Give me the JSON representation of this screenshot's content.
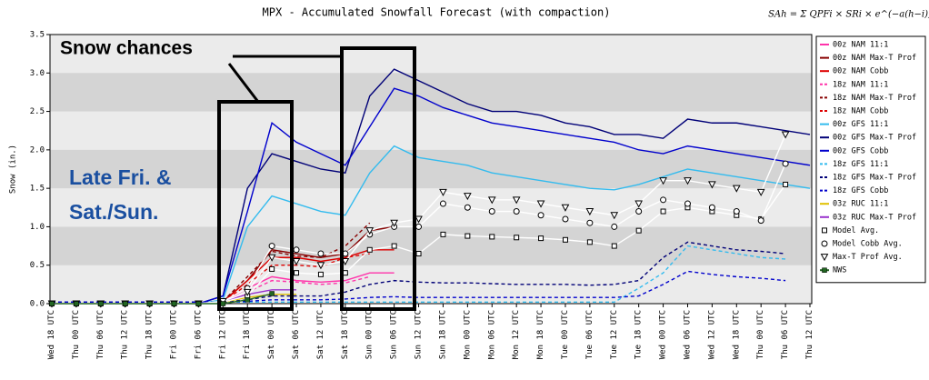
{
  "chart_data": {
    "type": "line",
    "title": "MPX - Accumulated Snowfall Forecast (with compaction)",
    "formula": "SAh = Σ QPFi × SRi × e^(−a(h−i))",
    "y_label": "Snow (in.)",
    "annotations": [
      "Snow chances",
      "Late Fri. &",
      "Sat./Sun."
    ],
    "categories": [
      "Wed 18 UTC",
      "Thu 00 UTC",
      "Thu 06 UTC",
      "Thu 12 UTC",
      "Thu 18 UTC",
      "Fri 00 UTC",
      "Fri 06 UTC",
      "Fri 12 UTC",
      "Fri 18 UTC",
      "Sat 00 UTC",
      "Sat 06 UTC",
      "Sat 12 UTC",
      "Sat 18 UTC",
      "Sun 00 UTC",
      "Sun 06 UTC",
      "Sun 12 UTC",
      "Sun 18 UTC",
      "Mon 00 UTC",
      "Mon 06 UTC",
      "Mon 12 UTC",
      "Mon 18 UTC",
      "Tue 00 UTC",
      "Tue 06 UTC",
      "Tue 12 UTC",
      "Tue 18 UTC",
      "Wed 00 UTC",
      "Wed 06 UTC",
      "Wed 12 UTC",
      "Wed 18 UTC",
      "Thu 00 UTC",
      "Thu 06 UTC",
      "Thu 12 UTC"
    ],
    "ylim": [
      0,
      3.5
    ],
    "yticks": [
      {
        "value": 0,
        "label": "0.0"
      },
      {
        "value": 0.5,
        "label": "0.5"
      },
      {
        "value": 1,
        "label": "1.0"
      },
      {
        "value": 1.5,
        "label": "1.5"
      },
      {
        "value": 2,
        "label": "2.0"
      },
      {
        "value": 2.5,
        "label": "2.5"
      },
      {
        "value": 3,
        "label": "3.0"
      },
      {
        "value": 3.5,
        "label": "3.5"
      }
    ],
    "grid": "bands",
    "legend": "right",
    "series": [
      {
        "name": "00z NAM 11:1",
        "color": "#ff33aa",
        "dashed": false,
        "values": [
          0,
          0,
          0,
          0,
          0,
          0,
          0,
          0.02,
          0.2,
          0.35,
          0.3,
          0.28,
          0.3,
          0.4,
          0.4,
          null,
          null,
          null,
          null,
          null,
          null,
          null,
          null,
          null,
          null,
          null,
          null,
          null,
          null,
          null,
          null,
          null
        ]
      },
      {
        "name": "00z NAM Max-T Prof",
        "color": "#880000",
        "dashed": false,
        "values": [
          0,
          0,
          0,
          0,
          0,
          0,
          0,
          0.03,
          0.3,
          0.7,
          0.65,
          0.6,
          0.65,
          0.95,
          1.0,
          null,
          null,
          null,
          null,
          null,
          null,
          null,
          null,
          null,
          null,
          null,
          null,
          null,
          null,
          null,
          null,
          null
        ]
      },
      {
        "name": "00z NAM Cobb",
        "color": "#dd0000",
        "dashed": false,
        "values": [
          0,
          0,
          0,
          0,
          0,
          0,
          0,
          0.02,
          0.3,
          0.6,
          0.6,
          0.55,
          0.6,
          0.7,
          0.7,
          null,
          null,
          null,
          null,
          null,
          null,
          null,
          null,
          null,
          null,
          null,
          null,
          null,
          null,
          null,
          null,
          null
        ]
      },
      {
        "name": "18z NAM 11:1",
        "color": "#ff33aa",
        "dashed": true,
        "values": [
          0,
          0,
          0,
          0,
          0,
          0,
          0,
          0.02,
          0.15,
          0.3,
          0.28,
          0.25,
          0.27,
          0.35,
          null,
          null,
          null,
          null,
          null,
          null,
          null,
          null,
          null,
          null,
          null,
          null,
          null,
          null,
          null,
          null,
          null,
          null
        ]
      },
      {
        "name": "18z NAM Max-T Prof",
        "color": "#880000",
        "dashed": true,
        "values": [
          0,
          0,
          0,
          0,
          0,
          0,
          0,
          0.03,
          0.35,
          0.68,
          0.62,
          0.6,
          0.75,
          1.05,
          null,
          null,
          null,
          null,
          null,
          null,
          null,
          null,
          null,
          null,
          null,
          null,
          null,
          null,
          null,
          null,
          null,
          null
        ]
      },
      {
        "name": "18z NAM Cobb",
        "color": "#dd0000",
        "dashed": true,
        "values": [
          0,
          0,
          0,
          0,
          0,
          0,
          0,
          0.02,
          0.25,
          0.5,
          0.5,
          0.48,
          0.6,
          0.65,
          null,
          null,
          null,
          null,
          null,
          null,
          null,
          null,
          null,
          null,
          null,
          null,
          null,
          null,
          null,
          null,
          null,
          null
        ]
      },
      {
        "name": "00z GFS 11:1",
        "color": "#33bbee",
        "dashed": false,
        "values": [
          0,
          0,
          0,
          0,
          0,
          0,
          0,
          0.05,
          1.0,
          1.4,
          1.3,
          1.2,
          1.15,
          1.7,
          2.05,
          1.9,
          1.85,
          1.8,
          1.7,
          1.65,
          1.6,
          1.55,
          1.5,
          1.48,
          1.55,
          1.65,
          1.75,
          1.7,
          1.65,
          1.6,
          1.55,
          1.5
        ]
      },
      {
        "name": "00z GFS Max-T Prof",
        "color": "#000077",
        "dashed": false,
        "values": [
          0,
          0,
          0,
          0,
          0,
          0,
          0,
          0.1,
          1.5,
          1.95,
          1.85,
          1.75,
          1.7,
          2.7,
          3.05,
          2.9,
          2.75,
          2.6,
          2.5,
          2.5,
          2.45,
          2.35,
          2.3,
          2.2,
          2.2,
          2.15,
          2.4,
          2.35,
          2.35,
          2.3,
          2.25,
          2.2
        ]
      },
      {
        "name": "00z GFS Cobb",
        "color": "#0000cc",
        "dashed": false,
        "values": [
          0,
          0,
          0,
          0,
          0,
          0,
          0,
          0.1,
          1.2,
          2.35,
          2.1,
          1.95,
          1.8,
          2.3,
          2.8,
          2.7,
          2.55,
          2.45,
          2.35,
          2.3,
          2.25,
          2.2,
          2.15,
          2.1,
          2.0,
          1.95,
          2.05,
          2.0,
          1.95,
          1.9,
          1.85,
          1.8
        ]
      },
      {
        "name": "18z GFS 11:1",
        "color": "#33bbee",
        "dashed": true,
        "values": [
          0.02,
          0.02,
          0.02,
          0.02,
          0.02,
          0.02,
          0.02,
          0.02,
          0.02,
          0.02,
          0.02,
          0.02,
          0.02,
          0.02,
          0.02,
          0.02,
          0.02,
          0.02,
          0.02,
          0.02,
          0.02,
          0.02,
          0.02,
          0.02,
          0.2,
          0.4,
          0.75,
          0.7,
          0.65,
          0.6,
          0.58,
          null
        ]
      },
      {
        "name": "18z GFS Max-T Prof",
        "color": "#000077",
        "dashed": true,
        "values": [
          0.02,
          0.02,
          0.02,
          0.02,
          0.02,
          0.02,
          0.02,
          0.02,
          0.05,
          0.1,
          0.1,
          0.1,
          0.15,
          0.25,
          0.3,
          0.28,
          0.27,
          0.27,
          0.26,
          0.25,
          0.25,
          0.25,
          0.24,
          0.25,
          0.3,
          0.6,
          0.8,
          0.75,
          0.7,
          0.68,
          0.65,
          null
        ]
      },
      {
        "name": "18z GFS Cobb",
        "color": "#0000cc",
        "dashed": true,
        "values": [
          0.02,
          0.02,
          0.02,
          0.02,
          0.02,
          0.02,
          0.02,
          0.02,
          0.03,
          0.05,
          0.05,
          0.05,
          0.06,
          0.08,
          0.09,
          0.08,
          0.08,
          0.08,
          0.08,
          0.08,
          0.08,
          0.08,
          0.08,
          0.08,
          0.1,
          0.25,
          0.42,
          0.38,
          0.35,
          0.33,
          0.3,
          null
        ]
      },
      {
        "name": "03z RUC 11:1",
        "color": "#e0c000",
        "dashed": false,
        "values": [
          0,
          0,
          0,
          0,
          0,
          0,
          0,
          0.02,
          0.08,
          0.12,
          0.12,
          null,
          null,
          null,
          null,
          null,
          null,
          null,
          null,
          null,
          null,
          null,
          null,
          null,
          null,
          null,
          null,
          null,
          null,
          null,
          null,
          null
        ]
      },
      {
        "name": "03z RUC Max-T Prof",
        "color": "#9933cc",
        "dashed": false,
        "values": [
          0,
          0,
          0,
          0,
          0,
          0,
          0,
          0.03,
          0.12,
          0.18,
          0.18,
          null,
          null,
          null,
          null,
          null,
          null,
          null,
          null,
          null,
          null,
          null,
          null,
          null,
          null,
          null,
          null,
          null,
          null,
          null,
          null,
          null
        ]
      },
      {
        "name": "Model Avg.",
        "color": "#ffffff",
        "dashed": false,
        "marker": "square",
        "values": [
          0,
          0,
          0,
          0,
          0,
          0,
          0,
          0.02,
          0.1,
          0.45,
          0.4,
          0.38,
          0.4,
          0.7,
          0.75,
          0.65,
          0.9,
          0.88,
          0.87,
          0.86,
          0.85,
          0.83,
          0.8,
          0.75,
          0.95,
          1.2,
          1.25,
          1.2,
          1.15,
          1.1,
          1.55,
          null
        ]
      },
      {
        "name": "Model Cobb Avg.",
        "color": "#ffffff",
        "dashed": false,
        "marker": "circle",
        "values": [
          0,
          0,
          0,
          0,
          0,
          0,
          0,
          0.03,
          0.2,
          0.75,
          0.7,
          0.65,
          0.65,
          0.9,
          1.0,
          1.0,
          1.3,
          1.25,
          1.2,
          1.2,
          1.15,
          1.1,
          1.05,
          1.0,
          1.2,
          1.35,
          1.3,
          1.25,
          1.2,
          1.08,
          1.82,
          null
        ]
      },
      {
        "name": "Max-T Prof Avg.",
        "color": "#ffffff",
        "dashed": false,
        "marker": "triangle",
        "values": [
          0,
          0,
          0,
          0,
          0,
          0,
          0,
          0.03,
          0.15,
          0.6,
          0.55,
          0.5,
          0.55,
          0.95,
          1.05,
          1.1,
          1.45,
          1.4,
          1.35,
          1.35,
          1.3,
          1.25,
          1.2,
          1.15,
          1.3,
          1.6,
          1.6,
          1.55,
          1.5,
          1.45,
          2.2,
          null
        ]
      },
      {
        "name": "NWS",
        "color": "#226622",
        "dashed": false,
        "marker": "filled-square",
        "values": [
          0,
          0,
          0,
          0,
          0,
          0,
          0,
          0,
          0.05,
          0.13,
          null,
          null,
          null,
          null,
          null,
          null,
          null,
          null,
          null,
          null,
          null,
          null,
          null,
          null,
          null,
          null,
          null,
          null,
          null,
          null,
          null,
          null
        ]
      }
    ]
  }
}
